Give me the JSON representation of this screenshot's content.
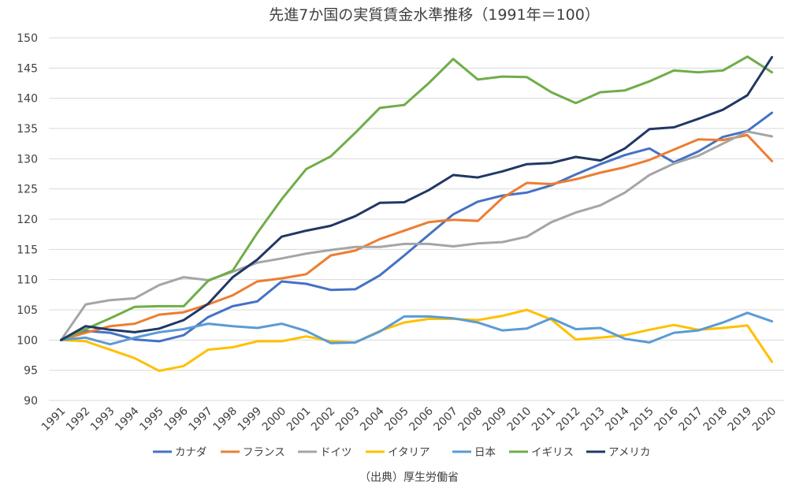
{
  "chart_data": {
    "type": "line",
    "title": "先進7か国の実質賃金水準推移（1991年＝100）",
    "source": "（出典）厚生労働省",
    "xlabel": "",
    "ylabel": "",
    "ylim": [
      90,
      150
    ],
    "y_ticks": [
      90,
      95,
      100,
      105,
      110,
      115,
      120,
      125,
      130,
      135,
      140,
      145,
      150
    ],
    "grid": true,
    "legend_position": "bottom",
    "categories": [
      "1991",
      "1992",
      "1993",
      "1994",
      "1995",
      "1996",
      "1997",
      "1998",
      "1999",
      "2000",
      "2001",
      "2002",
      "2003",
      "2004",
      "2005",
      "2006",
      "2007",
      "2008",
      "2009",
      "2010",
      "2011",
      "2012",
      "2013",
      "2014",
      "2015",
      "2016",
      "2017",
      "2018",
      "2019",
      "2020"
    ],
    "series": [
      {
        "name": "カナダ",
        "color": "#4472C4",
        "values": [
          100,
          101.5,
          101.2,
          100.1,
          99.8,
          100.8,
          103.8,
          105.6,
          106.4,
          109.7,
          109.3,
          108.3,
          108.4,
          110.7,
          114.0,
          117.4,
          120.8,
          122.9,
          123.9,
          124.4,
          125.6,
          127.4,
          129.1,
          130.6,
          131.7,
          129.4,
          131.2,
          133.6,
          134.6,
          137.6
        ]
      },
      {
        "name": "フランス",
        "color": "#ED7D31",
        "values": [
          100,
          101.2,
          102.3,
          102.7,
          104.2,
          104.6,
          105.9,
          107.4,
          109.7,
          110.2,
          110.9,
          114.0,
          114.8,
          116.7,
          118.1,
          119.5,
          119.9,
          119.7,
          123.5,
          126.0,
          125.8,
          126.6,
          127.7,
          128.6,
          129.8,
          131.5,
          133.2,
          133.1,
          133.9,
          129.6
        ]
      },
      {
        "name": "ドイツ",
        "color": "#A5A5A5",
        "values": [
          100,
          105.9,
          106.6,
          106.9,
          109.1,
          110.4,
          109.9,
          111.3,
          112.8,
          113.5,
          114.3,
          114.9,
          115.4,
          115.4,
          115.9,
          115.9,
          115.5,
          116.0,
          116.2,
          117.1,
          119.5,
          121.1,
          122.3,
          124.4,
          127.3,
          129.2,
          130.5,
          132.5,
          134.5,
          133.7
        ]
      },
      {
        "name": "イタリア",
        "color": "#FFC000",
        "values": [
          100,
          99.8,
          98.4,
          97.0,
          94.9,
          95.7,
          98.4,
          98.8,
          99.8,
          99.8,
          100.6,
          99.8,
          99.6,
          101.5,
          102.9,
          103.5,
          103.5,
          103.3,
          104.0,
          105.0,
          103.4,
          100.1,
          100.4,
          100.8,
          101.7,
          102.5,
          101.7,
          102.0,
          102.4,
          96.4
        ]
      },
      {
        "name": "日本",
        "color": "#5B9BD5",
        "values": [
          100,
          100.4,
          99.3,
          100.4,
          101.3,
          101.8,
          102.7,
          102.3,
          102.0,
          102.7,
          101.5,
          99.5,
          99.6,
          101.4,
          103.9,
          103.9,
          103.6,
          102.9,
          101.6,
          101.9,
          103.6,
          101.8,
          102.0,
          100.2,
          99.6,
          101.2,
          101.6,
          102.9,
          104.5,
          103.1
        ]
      },
      {
        "name": "イギリス",
        "color": "#70AD47",
        "values": [
          100,
          101.8,
          103.6,
          105.5,
          105.6,
          105.6,
          109.8,
          111.5,
          117.7,
          123.3,
          128.3,
          130.4,
          134.3,
          138.4,
          138.9,
          142.5,
          146.5,
          143.1,
          143.6,
          143.5,
          141.0,
          139.2,
          141.0,
          141.3,
          142.8,
          144.6,
          144.3,
          144.6,
          146.9,
          144.3
        ]
      },
      {
        "name": "アメリカ",
        "color": "#203864",
        "values": [
          100,
          102.3,
          101.7,
          101.3,
          101.9,
          103.3,
          106.0,
          110.4,
          113.3,
          117.1,
          118.1,
          118.9,
          120.5,
          122.7,
          122.8,
          124.8,
          127.3,
          126.9,
          127.9,
          129.1,
          129.3,
          130.3,
          129.7,
          131.7,
          134.9,
          135.2,
          136.6,
          138.1,
          140.5,
          146.8
        ]
      }
    ]
  }
}
